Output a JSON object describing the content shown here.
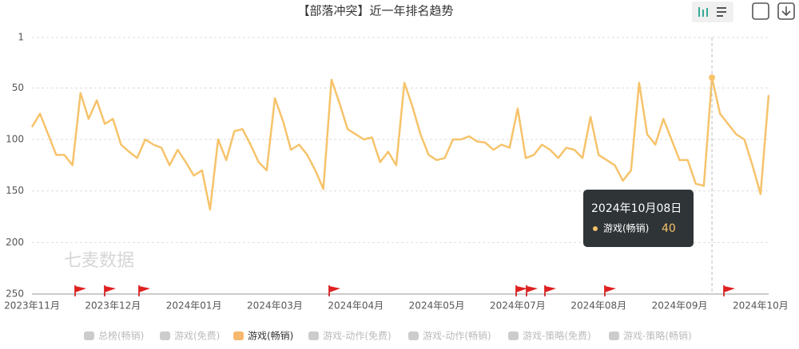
{
  "chart_data": {
    "type": "line",
    "title": "【部落冲突】近一年排名趋势",
    "watermark": "七麦数据",
    "categories": [
      "2023年11月",
      null,
      null,
      null,
      null,
      null,
      null,
      null,
      null,
      null,
      "2023年12月",
      null,
      null,
      null,
      null,
      null,
      null,
      null,
      null,
      null,
      "2024年01月",
      null,
      null,
      null,
      null,
      null,
      null,
      null,
      null,
      null,
      "2024年03月",
      null,
      null,
      null,
      null,
      null,
      null,
      null,
      null,
      null,
      "2024年04月",
      null,
      null,
      null,
      null,
      null,
      null,
      null,
      null,
      null,
      "2024年05月",
      null,
      null,
      null,
      null,
      null,
      null,
      null,
      null,
      null,
      "2024年07月",
      null,
      null,
      null,
      null,
      null,
      null,
      null,
      null,
      null,
      "2024年08月",
      null,
      null,
      null,
      null,
      null,
      null,
      null,
      null,
      null,
      "2024年09月",
      null,
      null,
      null,
      null,
      null,
      null,
      null,
      null,
      null,
      "2024年10月",
      null
    ],
    "series": [
      {
        "name": "游戏(畅销)",
        "color": "#f6c36b",
        "values": [
          88,
          75,
          95,
          115,
          115,
          125,
          55,
          80,
          62,
          85,
          80,
          105,
          112,
          118,
          100,
          105,
          108,
          125,
          110,
          122,
          135,
          130,
          168,
          100,
          120,
          92,
          90,
          105,
          122,
          130,
          60,
          82,
          110,
          105,
          115,
          130,
          148,
          42,
          65,
          90,
          95,
          100,
          98,
          122,
          112,
          125,
          45,
          68,
          95,
          115,
          120,
          118,
          100,
          100,
          97,
          102,
          103,
          110,
          105,
          108,
          70,
          118,
          115,
          105,
          110,
          118,
          108,
          110,
          118,
          78,
          115,
          120,
          125,
          140,
          130,
          45,
          95,
          105,
          80,
          100,
          120,
          120,
          143,
          145,
          40,
          75,
          85,
          95,
          100,
          125,
          153,
          57
        ]
      }
    ],
    "ylim": [
      1,
      250
    ],
    "yticks": [
      1,
      50,
      100,
      150,
      200,
      250
    ],
    "y_inverted": true,
    "grid": true,
    "tooltip_date": "2024年10月08日",
    "legend": [
      {
        "name": "总榜(畅销)",
        "color": "#cccccc"
      },
      {
        "name": "游戏(免费)",
        "color": "#cccccc"
      },
      {
        "name": "游戏(畅销)",
        "color": "#f6b86e"
      },
      {
        "name": "游戏-动作(免费)",
        "color": "#cccccc"
      },
      {
        "name": "游戏-动作(畅销)",
        "color": "#cccccc"
      },
      {
        "name": "游戏-策略(免费)",
        "color": "#cccccc"
      },
      {
        "name": "游戏-策略(畅销)",
        "color": "#cccccc"
      }
    ]
  }
}
